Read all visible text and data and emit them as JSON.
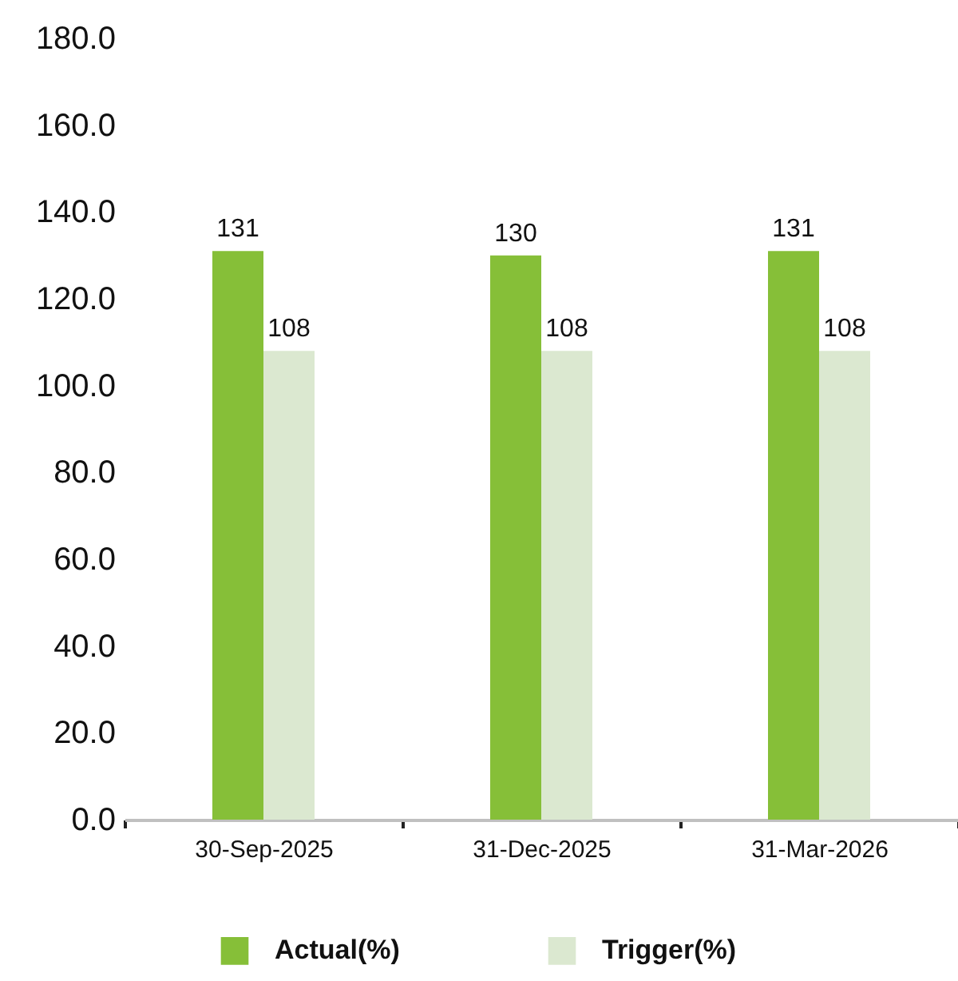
{
  "chart_data": {
    "type": "bar",
    "categories": [
      "30-Sep-2025",
      "31-Dec-2025",
      "31-Mar-2026"
    ],
    "series": [
      {
        "name": "Actual(%)",
        "color": "#86bf38",
        "values": [
          131,
          130,
          131
        ]
      },
      {
        "name": "Trigger(%)",
        "color": "#dbe8d0",
        "values": [
          108,
          108,
          108
        ]
      }
    ],
    "ylim": [
      0,
      180
    ],
    "yticks": [
      {
        "value": 0,
        "label": "0.0"
      },
      {
        "value": 20,
        "label": "20.0"
      },
      {
        "value": 40,
        "label": "40.0"
      },
      {
        "value": 60,
        "label": "60.0"
      },
      {
        "value": 80,
        "label": "80.0"
      },
      {
        "value": 100,
        "label": "100.0"
      },
      {
        "value": 120,
        "label": "120.0"
      },
      {
        "value": 140,
        "label": "140.0"
      },
      {
        "value": 160,
        "label": "160.0"
      },
      {
        "value": 180,
        "label": "180.0"
      }
    ],
    "data_labels": true,
    "legend": "bottom"
  }
}
